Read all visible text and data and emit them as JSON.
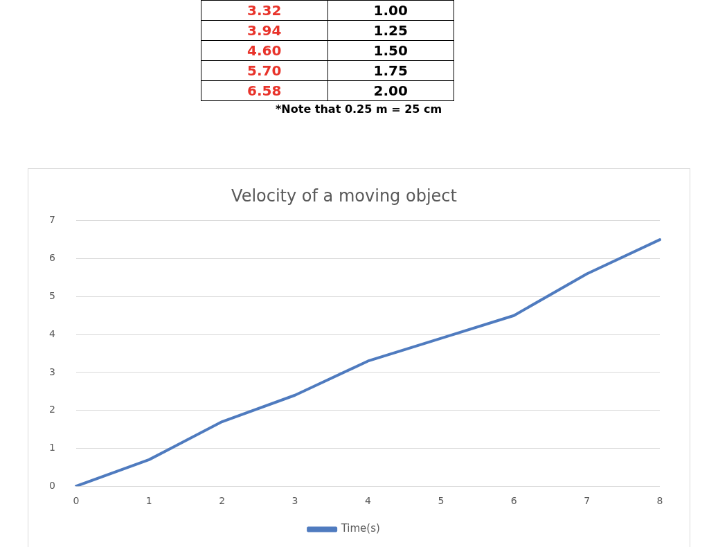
{
  "chart_data": [
    {
      "type": "other",
      "annotations": [
        "3.32",
        "1.00",
        "3.94",
        "1.25",
        "4.60",
        "1.50",
        "5.70",
        "1.75",
        "6.58",
        "2.00",
        "*Note that 0.25 m = 25 cm"
      ]
    },
    {
      "type": "line",
      "title": "Velocity of a moving object",
      "categories": [
        "0",
        "1",
        "2",
        "3",
        "4",
        "5",
        "6",
        "7",
        "8"
      ],
      "series": [
        {
          "name": "Time(s)",
          "color": "#4f7bbf",
          "values": [
            0,
            0.7,
            1.7,
            2.4,
            3.3,
            3.9,
            4.5,
            5.6,
            6.5
          ]
        }
      ],
      "ylim": [
        0,
        7
      ],
      "yticks": [
        0,
        1,
        2,
        3,
        4,
        5,
        6,
        7
      ],
      "grid": "y",
      "legend": "bottom",
      "marker": "none",
      "line_style": "solid"
    }
  ]
}
